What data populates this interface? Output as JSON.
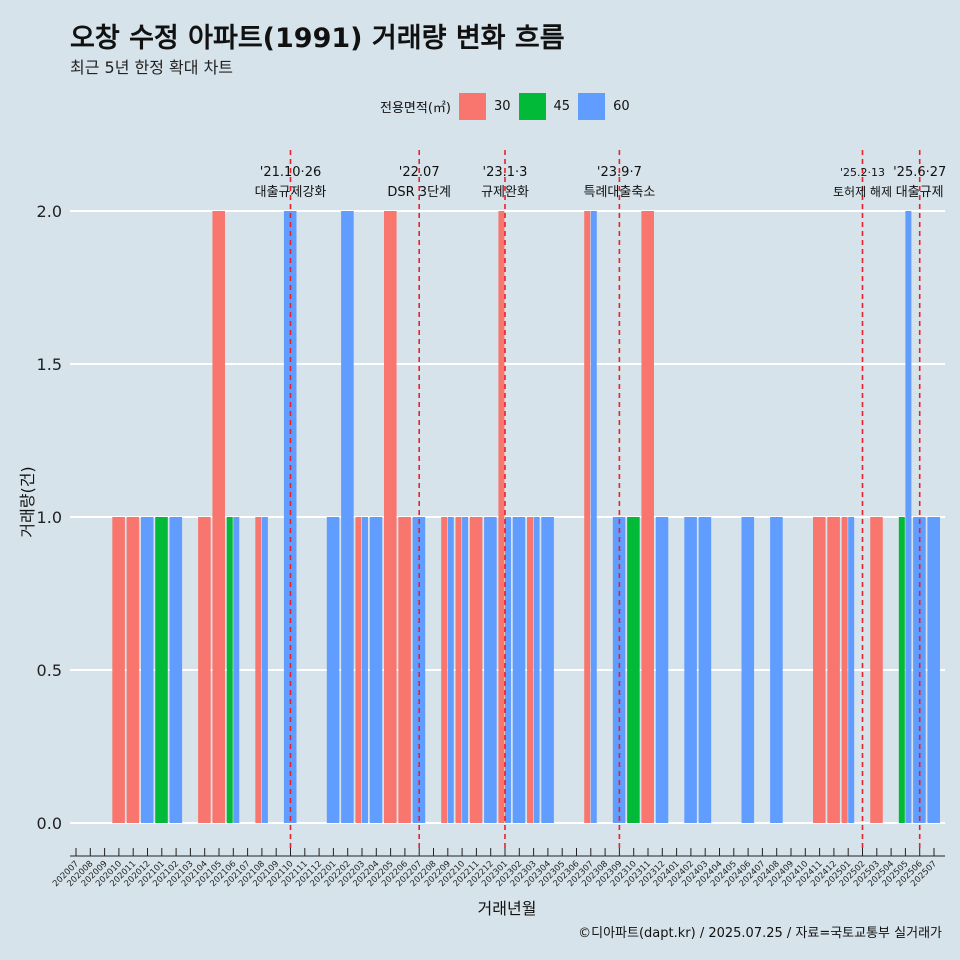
{
  "title": "오창 수정 아파트(1991) 거래량 변화 흐름",
  "subtitle": "최근 5년 한정 확대 차트",
  "caption": "©디아파트(dapt.kr) / 2025.07.25 / 자료=국토교통부 실거래가",
  "legend": {
    "title": "전용면적(㎡)",
    "items": [
      {
        "label": "30",
        "color": "#f8766d"
      },
      {
        "label": "45",
        "color": "#00ba38"
      },
      {
        "label": "60",
        "color": "#619cff"
      }
    ]
  },
  "chart_data": {
    "type": "bar",
    "xlabel": "거래년월",
    "ylabel": "거래량(건)",
    "ylim": [
      0,
      2.1
    ],
    "y_ticks": [
      "0.0",
      "0.5",
      "1.0",
      "1.5",
      "2.0"
    ],
    "grid": true,
    "legend_position": "top",
    "categories": [
      "202007",
      "202008",
      "202009",
      "202010",
      "202011",
      "202012",
      "202101",
      "202102",
      "202103",
      "202104",
      "202105",
      "202106",
      "202107",
      "202108",
      "202109",
      "202110",
      "202111",
      "202112",
      "202201",
      "202202",
      "202203",
      "202204",
      "202205",
      "202206",
      "202207",
      "202208",
      "202209",
      "202210",
      "202211",
      "202212",
      "202301",
      "202302",
      "202303",
      "202304",
      "202305",
      "202306",
      "202307",
      "202308",
      "202309",
      "202310",
      "202311",
      "202312",
      "202401",
      "202402",
      "202403",
      "202404",
      "202405",
      "202406",
      "202407",
      "202408",
      "202409",
      "202410",
      "202411",
      "202412",
      "202501",
      "202502",
      "202503",
      "202504",
      "202505",
      "202506",
      "202507"
    ],
    "series": [
      {
        "name": "30",
        "color": "#f8766d",
        "values": [
          0,
          0,
          0,
          1,
          1,
          0,
          0,
          0,
          0,
          1,
          2,
          0,
          0,
          1,
          0,
          0,
          0,
          0,
          0,
          0,
          1,
          0,
          2,
          1,
          0,
          0,
          1,
          1,
          1,
          0,
          2,
          0,
          1,
          0,
          0,
          0,
          2,
          0,
          0,
          0,
          2,
          0,
          0,
          0,
          0,
          0,
          0,
          0,
          0,
          0,
          0,
          0,
          1,
          1,
          1,
          0,
          1,
          0,
          0,
          0,
          0
        ]
      },
      {
        "name": "45",
        "color": "#00ba38",
        "values": [
          0,
          0,
          0,
          0,
          0,
          0,
          1,
          0,
          0,
          0,
          0,
          1,
          0,
          0,
          0,
          0,
          0,
          0,
          0,
          0,
          0,
          0,
          0,
          0,
          0,
          0,
          0,
          0,
          0,
          0,
          0,
          0,
          0,
          0,
          0,
          0,
          0,
          0,
          0,
          1,
          0,
          0,
          0,
          0,
          0,
          0,
          0,
          0,
          0,
          0,
          0,
          0,
          0,
          0,
          0,
          0,
          0,
          0,
          1,
          0,
          0
        ]
      },
      {
        "name": "60",
        "color": "#619cff",
        "values": [
          0,
          0,
          0,
          0,
          0,
          1,
          0,
          1,
          0,
          0,
          0,
          1,
          0,
          1,
          0,
          2,
          0,
          0,
          1,
          2,
          1,
          1,
          0,
          0,
          1,
          0,
          1,
          1,
          0,
          1,
          1,
          1,
          1,
          1,
          0,
          0,
          2,
          0,
          1,
          0,
          0,
          1,
          0,
          1,
          1,
          0,
          0,
          1,
          0,
          1,
          0,
          0,
          0,
          0,
          1,
          0,
          0,
          0,
          2,
          1,
          1
        ]
      }
    ],
    "annotations": [
      {
        "month": "202110",
        "date": "'21.10·26",
        "label": "대출규제강화"
      },
      {
        "month": "202207",
        "date": "'22.07",
        "label": "DSR 3단계"
      },
      {
        "month": "202301",
        "date": "'23.1·3",
        "label": "규제완화"
      },
      {
        "month": "202309",
        "date": "'23.9·7",
        "label": "특례대출축소"
      },
      {
        "month": "202502",
        "date": "'25.2·13",
        "label": "토허제 해제"
      },
      {
        "month": "202506",
        "date": "'25.6·27",
        "label": "대출규제"
      }
    ]
  }
}
